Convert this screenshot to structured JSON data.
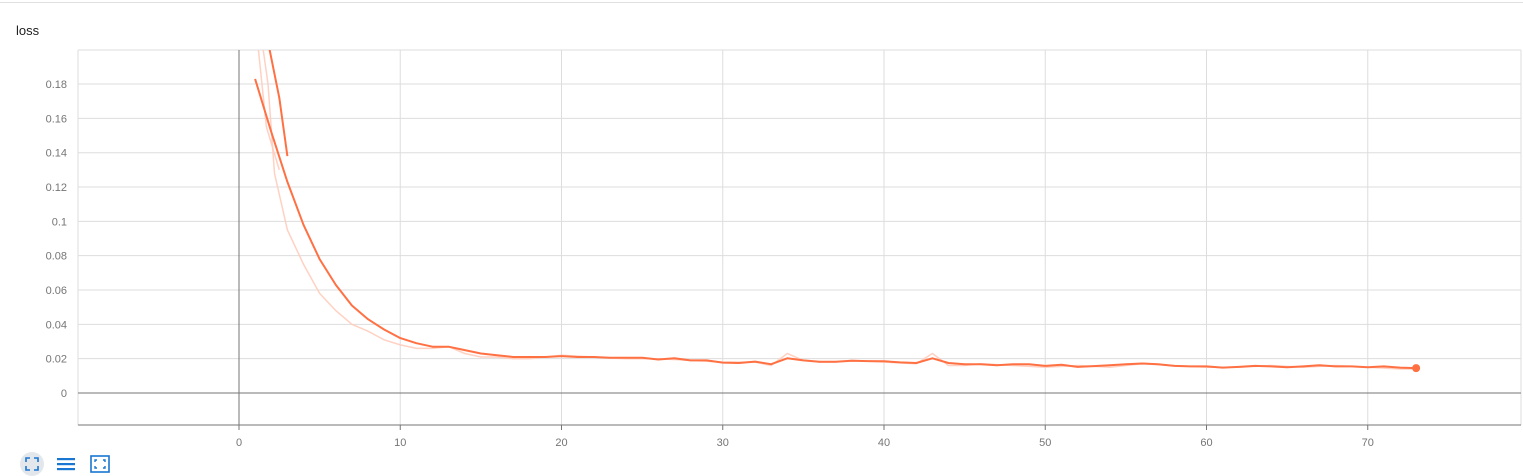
{
  "card": {
    "title": "loss"
  },
  "toolbar": {
    "buttons": [
      {
        "icon": "fullscreen-icon",
        "active": true
      },
      {
        "icon": "list-icon",
        "active": false
      },
      {
        "icon": "fit-domain-icon",
        "active": false
      }
    ],
    "color": "#1976d2"
  },
  "chart_data": {
    "type": "line",
    "title": "loss",
    "xlabel": "",
    "ylabel": "",
    "xlim": [
      -10,
      80
    ],
    "ylim": [
      -0.02,
      0.2
    ],
    "x_ticks": [
      0,
      10,
      20,
      30,
      40,
      50,
      60,
      70
    ],
    "y_ticks": [
      0,
      0.02,
      0.04,
      0.06,
      0.08,
      0.1,
      0.12,
      0.14,
      0.16,
      0.18
    ],
    "y_tick_labels": [
      "0",
      "0.02",
      "0.04",
      "0.06",
      "0.08",
      "0.1",
      "0.12",
      "0.14",
      "0.16",
      "0.18"
    ],
    "grid": true,
    "colors": {
      "series": "#ff7043",
      "raw": "#ffccbc",
      "axis": "#757575",
      "grid": "#dddddd"
    },
    "series": [
      {
        "style": "smoothed",
        "x": [
          1,
          2,
          3,
          4,
          5,
          6,
          7,
          8,
          9,
          10,
          11,
          12,
          13,
          14,
          15,
          16,
          17,
          18,
          19,
          20,
          21,
          22,
          23,
          24,
          25,
          26,
          27,
          28,
          29,
          30,
          31,
          32,
          33,
          34,
          35,
          36,
          37,
          38,
          39,
          40,
          41,
          42,
          43,
          44,
          45,
          46,
          47,
          48,
          49,
          50,
          51,
          52,
          53,
          54,
          55,
          56,
          57,
          58,
          59,
          60,
          61,
          62,
          63,
          64,
          65,
          66,
          67,
          68,
          69,
          70,
          71,
          72,
          73
        ],
        "y": [
          0.183,
          0.152,
          0.123,
          0.098,
          0.078,
          0.063,
          0.051,
          0.043,
          0.037,
          0.032,
          0.029,
          0.027,
          0.027,
          0.025,
          0.023,
          0.022,
          0.021,
          0.021,
          0.021,
          0.0215,
          0.021,
          0.021,
          0.0205,
          0.0205,
          0.0205,
          0.0195,
          0.0202,
          0.019,
          0.019,
          0.0177,
          0.0175,
          0.0183,
          0.0168,
          0.0202,
          0.019,
          0.0182,
          0.0182,
          0.0188,
          0.0186,
          0.0185,
          0.0178,
          0.0175,
          0.0202,
          0.0175,
          0.0168,
          0.0168,
          0.0162,
          0.0168,
          0.0168,
          0.0158,
          0.0165,
          0.0152,
          0.0157,
          0.0162,
          0.0168,
          0.0172,
          0.0168,
          0.0158,
          0.0155,
          0.0155,
          0.0148,
          0.0152,
          0.0158,
          0.0155,
          0.015,
          0.0155,
          0.0162,
          0.0155,
          0.0155,
          0.015,
          0.0155,
          0.0148,
          0.0145
        ]
      },
      {
        "style": "smoothed-restart",
        "x": [
          1.9,
          2.5,
          3
        ],
        "y": [
          0.2,
          0.172,
          0.138
        ]
      },
      {
        "style": "raw",
        "x": [
          1.5,
          1.8,
          2.2,
          3,
          4,
          5,
          6,
          7,
          8,
          9,
          10,
          11,
          12,
          13,
          14,
          15,
          16,
          17,
          18,
          19,
          20,
          22,
          24,
          26,
          28,
          30,
          32,
          33,
          34,
          35,
          36,
          37,
          38,
          40,
          42,
          43,
          44,
          45,
          46,
          48,
          50,
          52,
          54,
          56,
          58,
          60,
          62,
          64,
          66,
          68,
          70,
          72,
          73
        ],
        "y": [
          0.2,
          0.18,
          0.128,
          0.095,
          0.075,
          0.058,
          0.048,
          0.04,
          0.036,
          0.031,
          0.028,
          0.026,
          0.026,
          0.027,
          0.023,
          0.021,
          0.021,
          0.02,
          0.02,
          0.021,
          0.022,
          0.021,
          0.02,
          0.02,
          0.019,
          0.018,
          0.018,
          0.016,
          0.023,
          0.019,
          0.018,
          0.018,
          0.019,
          0.018,
          0.017,
          0.023,
          0.016,
          0.016,
          0.017,
          0.016,
          0.015,
          0.016,
          0.015,
          0.017,
          0.016,
          0.015,
          0.015,
          0.016,
          0.015,
          0.016,
          0.015,
          0.014,
          0.014
        ]
      },
      {
        "style": "raw-restart",
        "x": [
          1.2,
          1.7,
          2.5
        ],
        "y": [
          0.2,
          0.155,
          0.13
        ]
      }
    ]
  }
}
